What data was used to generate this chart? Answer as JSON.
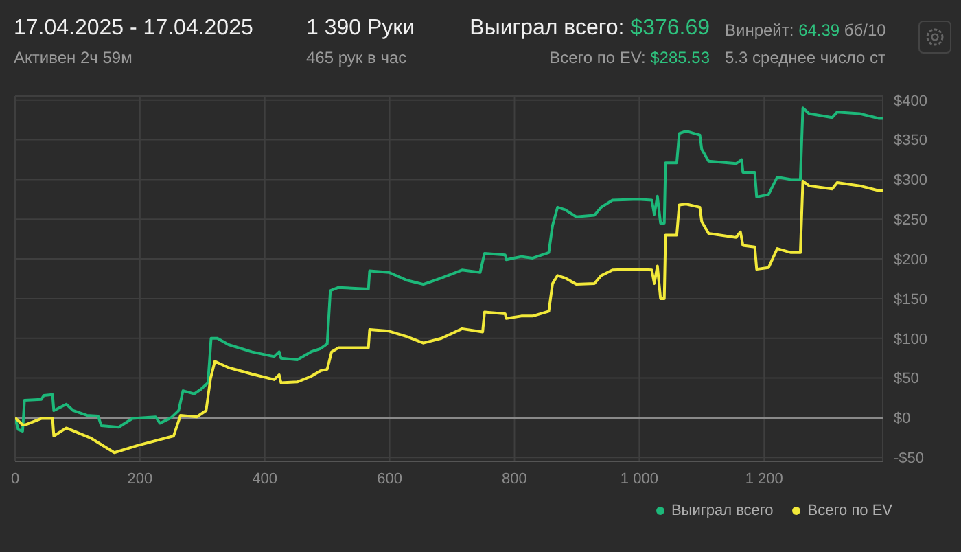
{
  "chart_data": {
    "type": "line",
    "title": "17.04.2025 - 17.04.2025",
    "subtitle": "Активен 2ч 59м",
    "annotations": [
      "1 390 Руки",
      "465 рук в час",
      "Выиграл всего: $376.69",
      "Всего по EV: $285.53",
      "Винрейт: 64.39 бб/10",
      "5.3 среднее число ст"
    ],
    "xlim": [
      0,
      1390
    ],
    "xticks": [
      0,
      200,
      400,
      600,
      800,
      {
        "value": 1000,
        "label": "1 000"
      },
      {
        "value": 1200,
        "label": "1 200"
      }
    ],
    "ylim": [
      -55,
      405
    ],
    "yticks": [
      {
        "value": -50,
        "label": "-$50"
      },
      {
        "value": 0,
        "label": "$0"
      },
      {
        "value": 50,
        "label": "$50"
      },
      {
        "value": 100,
        "label": "$100"
      },
      {
        "value": 150,
        "label": "$150"
      },
      {
        "value": 200,
        "label": "$200"
      },
      {
        "value": 250,
        "label": "$250"
      },
      {
        "value": 300,
        "label": "$300"
      },
      {
        "value": 350,
        "label": "$350"
      },
      {
        "value": 400,
        "label": "$400"
      }
    ],
    "grid": true,
    "legend": "bottom right",
    "marker": "none",
    "line_style": "solid",
    "series": [
      {
        "name": "Выиграл всего",
        "color": "#1db87a",
        "x": [
          0,
          5,
          12,
          15,
          42,
          46,
          60,
          62,
          82,
          93,
          115,
          133,
          138,
          166,
          188,
          225,
          232,
          250,
          262,
          269,
          287,
          298,
          309,
          314,
          324,
          342,
          379,
          415,
          423,
          426,
          452,
          474,
          489,
          500,
          505,
          518,
          566,
          568,
          599,
          628,
          654,
          683,
          716,
          745,
          752,
          785,
          787,
          811,
          829,
          855,
          861,
          869,
          881,
          899,
          928,
          939,
          957,
          998,
          1020,
          1024,
          1029,
          1034,
          1040,
          1042,
          1060,
          1064,
          1075,
          1097,
          1100,
          1111,
          1155,
          1164,
          1166,
          1185,
          1188,
          1207,
          1221,
          1243,
          1258,
          1262,
          1272,
          1309,
          1317,
          1353,
          1383,
          1390
        ],
        "values": [
          0,
          -15,
          -17,
          22,
          23,
          28,
          29,
          9,
          17,
          9,
          3,
          2,
          -10,
          -12,
          -1,
          1,
          -7,
          0,
          9,
          34,
          30,
          36,
          44,
          100,
          100,
          92,
          83,
          77,
          83,
          75,
          73,
          83,
          87,
          93,
          160,
          164,
          162,
          185,
          183,
          173,
          168,
          176,
          186,
          183,
          207,
          205,
          199,
          203,
          201,
          208,
          242,
          265,
          262,
          253,
          255,
          265,
          274,
          275,
          274,
          256,
          279,
          245,
          245,
          321,
          321,
          358,
          361,
          356,
          338,
          323,
          320,
          325,
          309,
          309,
          278,
          281,
          303,
          300,
          300,
          390,
          383,
          378,
          385,
          383,
          377,
          377
        ]
      },
      {
        "name": "Всего по EV",
        "color": "#f2e93a",
        "x": [
          0,
          12,
          16,
          42,
          60,
          62,
          82,
          122,
          159,
          196,
          254,
          265,
          291,
          306,
          313,
          320,
          342,
          379,
          415,
          423,
          426,
          452,
          474,
          489,
          500,
          507,
          518,
          566,
          568,
          599,
          628,
          654,
          683,
          716,
          749,
          752,
          785,
          787,
          811,
          829,
          855,
          861,
          869,
          881,
          899,
          928,
          939,
          957,
          998,
          1020,
          1024,
          1029,
          1034,
          1040,
          1042,
          1060,
          1064,
          1075,
          1097,
          1100,
          1111,
          1155,
          1162,
          1166,
          1185,
          1188,
          1207,
          1221,
          1243,
          1258,
          1262,
          1272,
          1309,
          1317,
          1353,
          1383,
          1390
        ],
        "values": [
          0,
          -9,
          -9,
          -1,
          -1,
          -23,
          -13,
          -26,
          -44,
          -35,
          -23,
          3,
          1,
          9,
          49,
          71,
          63,
          55,
          48,
          54,
          44,
          45,
          52,
          59,
          61,
          83,
          88,
          88,
          111,
          109,
          102,
          94,
          100,
          112,
          108,
          133,
          131,
          125,
          128,
          128,
          134,
          169,
          179,
          176,
          168,
          169,
          179,
          186,
          187,
          186,
          169,
          191,
          150,
          150,
          230,
          230,
          268,
          269,
          265,
          247,
          232,
          227,
          234,
          217,
          215,
          187,
          189,
          213,
          208,
          208,
          298,
          292,
          288,
          296,
          292,
          286,
          286
        ]
      }
    ]
  }
}
